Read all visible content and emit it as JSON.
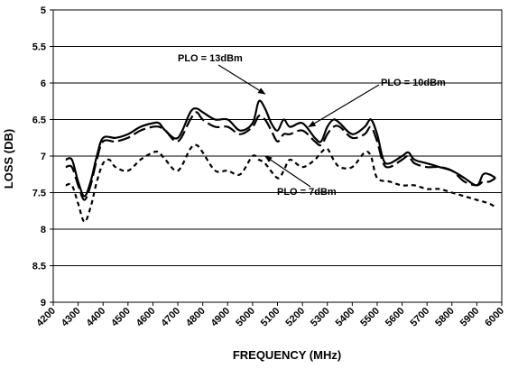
{
  "chart_data": {
    "type": "line",
    "title": "",
    "xlabel": "FREQUENCY (MHz)",
    "ylabel": "LOSS (DB)",
    "xlim": [
      4200,
      6000
    ],
    "ylim": [
      5,
      9
    ],
    "y_inverted": true,
    "x_ticks": [
      4200,
      4300,
      4400,
      4500,
      4600,
      4700,
      4800,
      4900,
      5000,
      5100,
      5200,
      5300,
      5400,
      5500,
      5600,
      5700,
      5800,
      5900,
      6000
    ],
    "y_ticks": [
      5,
      5.5,
      6,
      6.5,
      7,
      7.5,
      8,
      8.5,
      9
    ],
    "grid": "horizontal",
    "legend": "none",
    "series": [
      {
        "name": "PLO = 13dBm",
        "style": "solid",
        "color": "#000000",
        "x": [
          4250,
          4275,
          4300,
          4325,
          4350,
          4375,
          4400,
          4450,
          4500,
          4550,
          4600,
          4625,
          4650,
          4700,
          4750,
          4775,
          4800,
          4850,
          4900,
          4950,
          5000,
          5025,
          5050,
          5075,
          5100,
          5125,
          5150,
          5200,
          5250,
          5275,
          5300,
          5325,
          5350,
          5400,
          5450,
          5475,
          5500,
          5525,
          5550,
          5600,
          5625,
          5650,
          5700,
          5750,
          5800,
          5850,
          5900,
          5925,
          5950,
          5975
        ],
        "y": [
          7.05,
          7.05,
          7.35,
          7.55,
          7.35,
          7.0,
          6.75,
          6.75,
          6.7,
          6.6,
          6.55,
          6.55,
          6.65,
          6.75,
          6.4,
          6.35,
          6.4,
          6.5,
          6.5,
          6.65,
          6.55,
          6.25,
          6.35,
          6.55,
          6.65,
          6.5,
          6.6,
          6.55,
          6.75,
          6.8,
          6.6,
          6.5,
          6.55,
          6.7,
          6.6,
          6.5,
          6.7,
          7.05,
          7.1,
          7.0,
          6.95,
          7.05,
          7.1,
          7.15,
          7.2,
          7.3,
          7.4,
          7.25,
          7.25,
          7.3
        ]
      },
      {
        "name": "PLO = 10dBm",
        "style": "long-dash",
        "color": "#000000",
        "x": [
          4250,
          4275,
          4300,
          4325,
          4350,
          4375,
          4400,
          4450,
          4500,
          4550,
          4600,
          4625,
          4650,
          4700,
          4750,
          4775,
          4800,
          4850,
          4900,
          4950,
          5000,
          5025,
          5050,
          5075,
          5100,
          5125,
          5150,
          5200,
          5250,
          5275,
          5300,
          5325,
          5350,
          5400,
          5450,
          5475,
          5500,
          5525,
          5550,
          5600,
          5625,
          5650,
          5700,
          5750,
          5800,
          5850,
          5900,
          5925,
          5950,
          5975
        ],
        "y": [
          7.15,
          7.15,
          7.4,
          7.6,
          7.4,
          7.05,
          6.8,
          6.8,
          6.75,
          6.65,
          6.6,
          6.6,
          6.65,
          6.8,
          6.5,
          6.4,
          6.5,
          6.6,
          6.6,
          6.7,
          6.6,
          6.45,
          6.5,
          6.65,
          6.8,
          6.7,
          6.7,
          6.65,
          6.8,
          6.85,
          6.7,
          6.6,
          6.6,
          6.75,
          6.7,
          6.6,
          6.8,
          7.1,
          7.15,
          7.05,
          7.0,
          7.1,
          7.15,
          7.15,
          7.2,
          7.35,
          7.4,
          7.35,
          7.35,
          7.3
        ]
      },
      {
        "name": "PLO = 7dBm",
        "style": "short-dash",
        "color": "#000000",
        "x": [
          4250,
          4275,
          4300,
          4325,
          4350,
          4375,
          4400,
          4425,
          4450,
          4500,
          4550,
          4600,
          4625,
          4650,
          4700,
          4750,
          4775,
          4800,
          4850,
          4900,
          4950,
          5000,
          5025,
          5050,
          5100,
          5125,
          5150,
          5200,
          5250,
          5275,
          5300,
          5325,
          5350,
          5400,
          5450,
          5475,
          5500,
          5550,
          5600,
          5650,
          5700,
          5750,
          5800,
          5850,
          5900,
          5950,
          5975
        ],
        "y": [
          7.4,
          7.4,
          7.65,
          7.9,
          7.7,
          7.35,
          7.1,
          7.05,
          7.15,
          7.2,
          7.05,
          6.95,
          6.95,
          7.05,
          7.2,
          6.9,
          6.85,
          6.95,
          7.2,
          7.2,
          7.25,
          7.0,
          7.05,
          7.1,
          7.3,
          7.2,
          7.05,
          7.15,
          7.05,
          6.95,
          6.9,
          7.05,
          7.15,
          7.15,
          6.95,
          7.0,
          7.3,
          7.35,
          7.4,
          7.4,
          7.45,
          7.45,
          7.5,
          7.55,
          7.6,
          7.65,
          7.7
        ]
      }
    ],
    "annotations": [
      {
        "text": "PLO = 13dBm",
        "series": "PLO = 13dBm",
        "arrow_to_x": 5050,
        "arrow_to_y": 6.15
      },
      {
        "text": "PLO = 10dBm",
        "series": "PLO = 10dBm",
        "arrow_to_x": 5225,
        "arrow_to_y": 6.6
      },
      {
        "text": "PLO = 7dBm",
        "series": "PLO = 7dBm",
        "arrow_to_x": 5050,
        "arrow_to_y": 7.0
      }
    ]
  }
}
